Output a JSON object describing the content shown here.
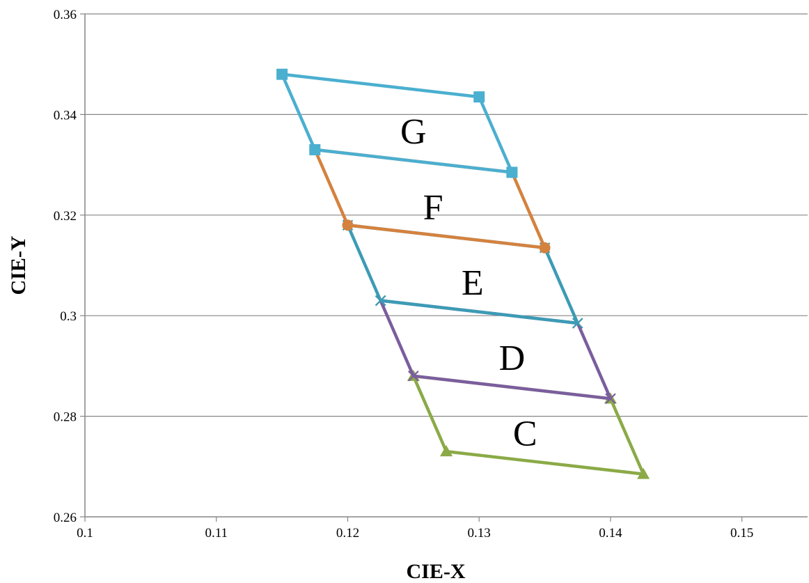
{
  "chart_data": {
    "type": "scatter",
    "xlabel": "CIE-X",
    "ylabel": "CIE-Y",
    "xlim": [
      0.1,
      0.155
    ],
    "ylim": [
      0.26,
      0.36
    ],
    "x_ticks": [
      "0.1",
      "0.11",
      "0.12",
      "0.13",
      "0.14",
      "0.15"
    ],
    "y_ticks": [
      "0.26",
      "0.28",
      "0.3",
      "0.32",
      "0.34",
      "0.36"
    ],
    "grid": "horizontal",
    "series": [
      {
        "color": "#8BAA47",
        "marker": "triangle",
        "points": [
          [
            0.125,
            0.288
          ],
          [
            0.1275,
            0.273
          ],
          [
            0.1425,
            0.2685
          ],
          [
            0.14,
            0.2835
          ]
        ]
      },
      {
        "color": "#7B5E9E",
        "marker": "x",
        "points": [
          [
            0.1225,
            0.303
          ],
          [
            0.125,
            0.288
          ],
          [
            0.14,
            0.2835
          ],
          [
            0.1375,
            0.2985
          ]
        ]
      },
      {
        "color": "#3C9BB5",
        "marker": "x",
        "points": [
          [
            0.12,
            0.318
          ],
          [
            0.1225,
            0.303
          ],
          [
            0.1375,
            0.2985
          ],
          [
            0.135,
            0.3135
          ]
        ]
      },
      {
        "color": "#D4823F",
        "marker": "circle",
        "points": [
          [
            0.1175,
            0.333
          ],
          [
            0.12,
            0.318
          ],
          [
            0.135,
            0.3135
          ],
          [
            0.1325,
            0.3285
          ]
        ]
      },
      {
        "color": "#4BAFD0",
        "marker": "square",
        "points": [
          [
            0.115,
            0.348
          ],
          [
            0.1175,
            0.333
          ],
          [
            0.1325,
            0.3285
          ],
          [
            0.13,
            0.3435
          ]
        ]
      }
    ],
    "annotations": [
      {
        "text": "C",
        "x": 0.1335,
        "y": 0.2765
      },
      {
        "text": "D",
        "x": 0.1325,
        "y": 0.2915
      },
      {
        "text": "E",
        "x": 0.1295,
        "y": 0.3065
      },
      {
        "text": "F",
        "x": 0.1265,
        "y": 0.3215
      },
      {
        "text": "G",
        "x": 0.125,
        "y": 0.3365
      }
    ]
  }
}
